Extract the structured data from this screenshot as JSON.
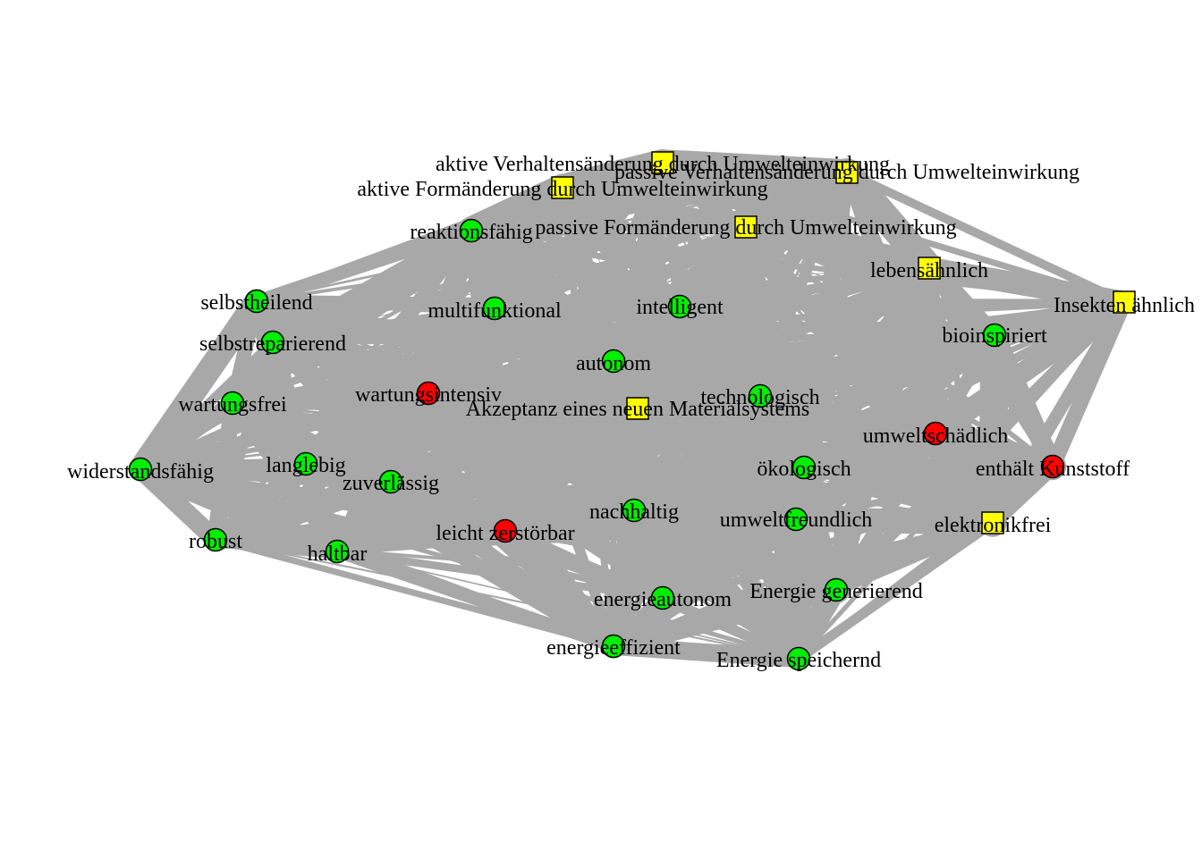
{
  "colors": {
    "background": "#ffffff",
    "edge": "#a8a8a8",
    "node_positive": "#00ee00",
    "node_negative": "#ff0000",
    "node_concept": "#ffff00",
    "node_border": "#000000"
  },
  "nodes": [
    {
      "id": "aktive-verhaltensaenderung",
      "label": "aktive Verhaltensänderung durch Umwelteinwirkung",
      "group": "concept",
      "shape": "square"
    },
    {
      "id": "passive-verhaltensaenderung",
      "label": "passive Verhaltensänderung durch Umwelteinwirkung",
      "group": "concept",
      "shape": "square"
    },
    {
      "id": "aktive-formaenderung",
      "label": "aktive Formänderung durch Umwelteinwirkung",
      "group": "concept",
      "shape": "square"
    },
    {
      "id": "passive-formaenderung",
      "label": "passive Formänderung durch Umwelteinwirkung",
      "group": "concept",
      "shape": "square"
    },
    {
      "id": "lebensaehnlich",
      "label": "lebensähnlich",
      "group": "concept",
      "shape": "square"
    },
    {
      "id": "insekten-aehnlich",
      "label": "Insekten ähnlich",
      "group": "concept",
      "shape": "square"
    },
    {
      "id": "akzeptanz",
      "label": "Akzeptanz eines neuen Materialsystems",
      "group": "concept",
      "shape": "square"
    },
    {
      "id": "elektronikfrei",
      "label": "elektronikfrei",
      "group": "concept",
      "shape": "square"
    },
    {
      "id": "reaktionsfaehig",
      "label": "reaktionsfähig",
      "group": "positive",
      "shape": "circle"
    },
    {
      "id": "selbstheilend",
      "label": "selbstheilend",
      "group": "positive",
      "shape": "circle"
    },
    {
      "id": "multifunktional",
      "label": "multifunktional",
      "group": "positive",
      "shape": "circle"
    },
    {
      "id": "intelligent",
      "label": "intelligent",
      "group": "positive",
      "shape": "circle"
    },
    {
      "id": "bioinspiriert",
      "label": "bioinspiriert",
      "group": "positive",
      "shape": "circle"
    },
    {
      "id": "selbstreparierend",
      "label": "selbstreparierend",
      "group": "positive",
      "shape": "circle"
    },
    {
      "id": "autonom",
      "label": "autonom",
      "group": "positive",
      "shape": "circle"
    },
    {
      "id": "wartungsfrei",
      "label": "wartungsfrei",
      "group": "positive",
      "shape": "circle"
    },
    {
      "id": "wartungsintensiv",
      "label": "wartungsintensiv",
      "group": "negative",
      "shape": "circle"
    },
    {
      "id": "technologisch",
      "label": "technologisch",
      "group": "positive",
      "shape": "circle"
    },
    {
      "id": "umweltschaedlich",
      "label": "umweltschädlich",
      "group": "negative",
      "shape": "circle"
    },
    {
      "id": "enthaelt-kunststoff",
      "label": "enthält Kunststoff",
      "group": "negative",
      "shape": "circle"
    },
    {
      "id": "widerstandsfaehig",
      "label": "widerstandsfähig",
      "group": "positive",
      "shape": "circle"
    },
    {
      "id": "langlebig",
      "label": "langlebig",
      "group": "positive",
      "shape": "circle"
    },
    {
      "id": "zuverlaessig",
      "label": "zuverlässig",
      "group": "positive",
      "shape": "circle"
    },
    {
      "id": "oekologisch",
      "label": "ökologisch",
      "group": "positive",
      "shape": "circle"
    },
    {
      "id": "nachhaltig",
      "label": "nachhaltig",
      "group": "positive",
      "shape": "circle"
    },
    {
      "id": "umweltfreundlich",
      "label": "umweltfreundlich",
      "group": "positive",
      "shape": "circle"
    },
    {
      "id": "robust",
      "label": "robust",
      "group": "positive",
      "shape": "circle"
    },
    {
      "id": "leicht-zerstoerbar",
      "label": "leicht zerstörbar",
      "group": "negative",
      "shape": "circle"
    },
    {
      "id": "haltbar",
      "label": "haltbar",
      "group": "positive",
      "shape": "circle"
    },
    {
      "id": "energieautonom",
      "label": "energieautonom",
      "group": "positive",
      "shape": "circle"
    },
    {
      "id": "energie-generierend",
      "label": "Energie generierend",
      "group": "positive",
      "shape": "circle"
    },
    {
      "id": "energieeffizient",
      "label": "energieeffizient",
      "group": "positive",
      "shape": "circle"
    },
    {
      "id": "energie-speichernd",
      "label": "Energie speichernd",
      "group": "positive",
      "shape": "circle"
    }
  ]
}
